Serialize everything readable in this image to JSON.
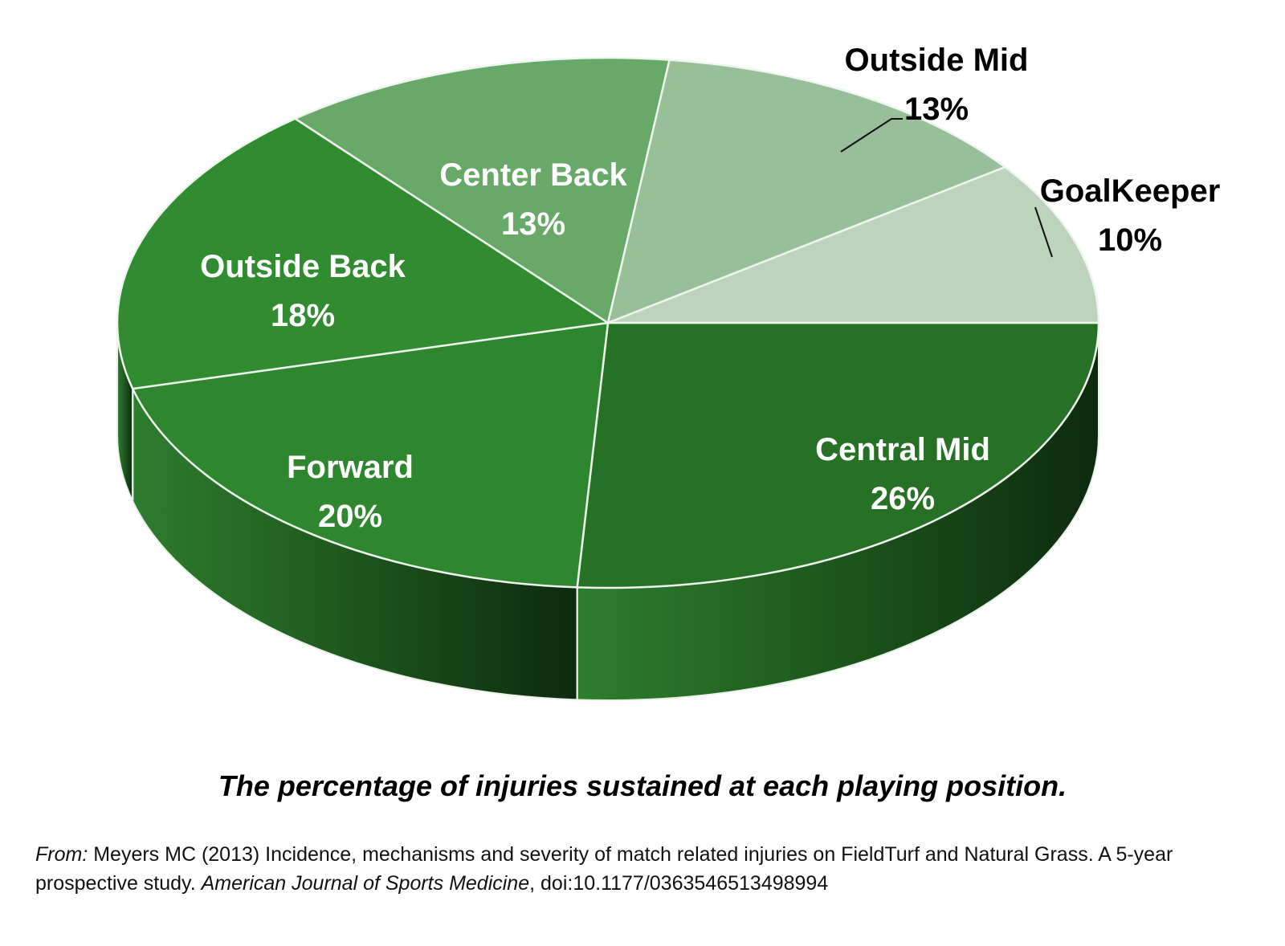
{
  "chart_data": {
    "type": "pie",
    "style": "3d",
    "title": "The percentage of injuries sustained at each playing position.",
    "slices": [
      {
        "name": "Central Mid",
        "label": "26%",
        "value": 26,
        "color": "#277127",
        "side_color": "#1c501c"
      },
      {
        "name": "Forward",
        "label": "20%",
        "value": 20,
        "color": "#2e862e",
        "side_color": "#206320"
      },
      {
        "name": "Outside Back",
        "label": "18%",
        "value": 18,
        "color": "#318c31",
        "side_color": "#236623"
      },
      {
        "name": "Center Back",
        "label": "13%",
        "value": 13,
        "color": "#68a868",
        "side_color": "#4a804a"
      },
      {
        "name": "Outside Mid",
        "label": "13%",
        "value": 13,
        "color": "#98bf98",
        "side_color": "#7a9d7a"
      },
      {
        "name": "GoalKeeper",
        "label": "10%",
        "value": 10,
        "color": "#bcd4bc",
        "side_color": "#9ab59a"
      }
    ]
  },
  "source": {
    "from_label": "From:",
    "text_1": " Meyers MC (2013) Incidence, mechanisms and severity of match related injuries on FieldTurf and Natural Grass. A 5-year prospective study.  ",
    "journal": "American Journal of Sports Medicine",
    "text_2": ", doi:10.1177/0363546513498994"
  }
}
